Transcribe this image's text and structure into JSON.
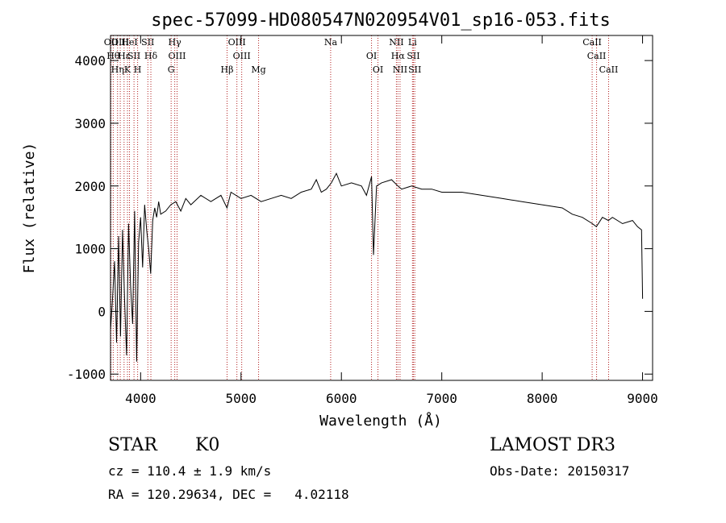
{
  "chart_data": {
    "type": "line",
    "title": "spec-57099-HD080547N020954V01_sp16-053.fits",
    "xlabel": "Wavelength (Å)",
    "ylabel": "Flux (relative)",
    "xlim": [
      3700,
      9100
    ],
    "ylim": [
      -1100,
      4400
    ],
    "xticks": [
      4000,
      5000,
      6000,
      7000,
      8000,
      9000
    ],
    "yticks": [
      -1000,
      0,
      1000,
      2000,
      3000,
      4000
    ],
    "series": [
      {
        "name": "spectrum",
        "x": [
          3700,
          3720,
          3740,
          3760,
          3780,
          3800,
          3820,
          3840,
          3860,
          3880,
          3900,
          3920,
          3940,
          3960,
          3980,
          4000,
          4020,
          4040,
          4060,
          4080,
          4100,
          4120,
          4140,
          4160,
          4180,
          4200,
          4250,
          4300,
          4350,
          4400,
          4450,
          4500,
          4600,
          4700,
          4800,
          4860,
          4900,
          5000,
          5100,
          5200,
          5300,
          5400,
          5500,
          5600,
          5700,
          5750,
          5800,
          5850,
          5900,
          5950,
          6000,
          6100,
          6200,
          6250,
          6300,
          6320,
          6350,
          6400,
          6500,
          6563,
          6600,
          6700,
          6800,
          6900,
          7000,
          7200,
          7400,
          7600,
          7800,
          8000,
          8200,
          8300,
          8400,
          8500,
          8540,
          8600,
          8660,
          8700,
          8800,
          8900,
          8950,
          8990,
          9000
        ],
        "y": [
          -300,
          200,
          800,
          -500,
          1200,
          -400,
          1300,
          200,
          -700,
          1400,
          400,
          -200,
          1600,
          -800,
          1100,
          1500,
          700,
          1700,
          1300,
          1000,
          600,
          1450,
          1650,
          1500,
          1750,
          1550,
          1600,
          1700,
          1750,
          1600,
          1800,
          1700,
          1850,
          1750,
          1850,
          1650,
          1900,
          1800,
          1850,
          1750,
          1800,
          1850,
          1800,
          1900,
          1950,
          2100,
          1900,
          1950,
          2050,
          2200,
          2000,
          2050,
          2000,
          1850,
          2150,
          900,
          2000,
          2050,
          2100,
          2000,
          1950,
          2000,
          1950,
          1950,
          1900,
          1900,
          1850,
          1800,
          1750,
          1700,
          1650,
          1550,
          1500,
          1400,
          1350,
          1500,
          1450,
          1500,
          1400,
          1450,
          1350,
          1300,
          200
        ]
      }
    ],
    "lines": [
      {
        "x": 3705,
        "labels": [
          "OII"
        ]
      },
      {
        "x": 3727,
        "labels": [
          "Hθ"
        ]
      },
      {
        "x": 3770,
        "labels": [
          "Hη"
        ]
      },
      {
        "x": 3797,
        "labels": [
          "OIII"
        ]
      },
      {
        "x": 3835,
        "labels": [
          "Hε"
        ]
      },
      {
        "x": 3869,
        "labels": [
          "K"
        ]
      },
      {
        "x": 3889,
        "labels": [
          "HeI"
        ]
      },
      {
        "x": 3934,
        "labels": [
          "SII"
        ]
      },
      {
        "x": 3970,
        "labels": [
          "H"
        ]
      },
      {
        "x": 4072,
        "labels": [
          "SII"
        ]
      },
      {
        "x": 4102,
        "labels": [
          "Hδ"
        ]
      },
      {
        "x": 4304,
        "labels": [
          "G"
        ]
      },
      {
        "x": 4340,
        "labels": [
          "Hγ"
        ]
      },
      {
        "x": 4363,
        "labels": [
          "OIII"
        ]
      },
      {
        "x": 4861,
        "labels": [
          "Hβ"
        ]
      },
      {
        "x": 4959,
        "labels": [
          "OIII"
        ]
      },
      {
        "x": 5007,
        "labels": [
          "OIII"
        ]
      },
      {
        "x": 5175,
        "labels": [
          "Mg"
        ]
      },
      {
        "x": 5893,
        "labels": [
          "Na"
        ]
      },
      {
        "x": 6300,
        "labels": [
          "OI"
        ]
      },
      {
        "x": 6364,
        "labels": [
          "OI"
        ]
      },
      {
        "x": 6548,
        "labels": [
          "NII"
        ]
      },
      {
        "x": 6563,
        "labels": [
          "Hα"
        ]
      },
      {
        "x": 6584,
        "labels": [
          "NII"
        ]
      },
      {
        "x": 6708,
        "labels": [
          "Li"
        ]
      },
      {
        "x": 6717,
        "labels": [
          "SII"
        ]
      },
      {
        "x": 6731,
        "labels": [
          "SII"
        ]
      },
      {
        "x": 8498,
        "labels": [
          "CaII"
        ]
      },
      {
        "x": 8542,
        "labels": [
          "CaII"
        ]
      },
      {
        "x": 8662,
        "labels": [
          "CaII"
        ]
      }
    ],
    "grid": false
  },
  "info": {
    "class": "STAR",
    "subclass": "K0",
    "survey": "LAMOST DR3",
    "cz": "cz = 110.4 ± 1.9 km/s",
    "obs_date": "Obs-Date: 20150317",
    "radec": "RA = 120.29634, DEC =   4.02118"
  },
  "colors": {
    "line": "#000000",
    "marker": "#b22222",
    "axis": "#000000"
  }
}
